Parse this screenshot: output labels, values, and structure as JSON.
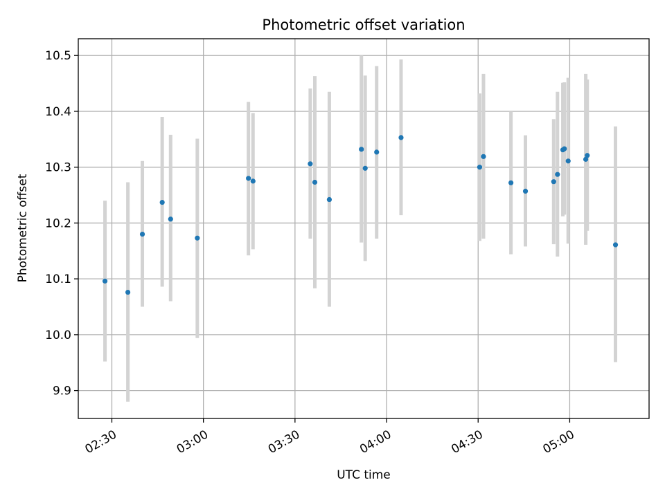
{
  "chart_data": {
    "type": "scatter",
    "title": "Photometric offset variation",
    "xlabel": "UTC time",
    "ylabel": "Photometric offset",
    "x_axis": {
      "kind": "time",
      "range": [
        "02:19",
        "05:26"
      ],
      "ticks": [
        "02:30",
        "03:00",
        "03:30",
        "04:00",
        "04:30",
        "05:00"
      ]
    },
    "y_axis": {
      "range": [
        9.85,
        10.53
      ],
      "ticks": [
        "9.9",
        "10.0",
        "10.1",
        "10.2",
        "10.3",
        "10.4",
        "10.5"
      ]
    },
    "grid": true,
    "point_color": "#1f77b4",
    "errorbar_color": "#d3d3d3",
    "points": [
      {
        "t": "02:27:45",
        "y": 10.096,
        "ylo": 9.952,
        "yhi": 10.24
      },
      {
        "t": "02:35:15",
        "y": 10.076,
        "ylo": 9.88,
        "yhi": 10.273
      },
      {
        "t": "02:40:00",
        "y": 10.18,
        "ylo": 10.05,
        "yhi": 10.311
      },
      {
        "t": "02:46:30",
        "y": 10.237,
        "ylo": 10.086,
        "yhi": 10.39
      },
      {
        "t": "02:49:15",
        "y": 10.207,
        "ylo": 10.06,
        "yhi": 10.358
      },
      {
        "t": "02:58:00",
        "y": 10.173,
        "ylo": 9.994,
        "yhi": 10.351
      },
      {
        "t": "03:14:45",
        "y": 10.28,
        "ylo": 10.142,
        "yhi": 10.417
      },
      {
        "t": "03:16:15",
        "y": 10.275,
        "ylo": 10.153,
        "yhi": 10.397
      },
      {
        "t": "03:35:00",
        "y": 10.306,
        "ylo": 10.172,
        "yhi": 10.441
      },
      {
        "t": "03:36:30",
        "y": 10.273,
        "ylo": 10.083,
        "yhi": 10.463
      },
      {
        "t": "03:41:15",
        "y": 10.242,
        "ylo": 10.05,
        "yhi": 10.435
      },
      {
        "t": "03:51:45",
        "y": 10.332,
        "ylo": 10.165,
        "yhi": 10.5
      },
      {
        "t": "03:53:00",
        "y": 10.298,
        "ylo": 10.132,
        "yhi": 10.464
      },
      {
        "t": "03:56:45",
        "y": 10.327,
        "ylo": 10.172,
        "yhi": 10.481
      },
      {
        "t": "04:04:45",
        "y": 10.353,
        "ylo": 10.214,
        "yhi": 10.493
      },
      {
        "t": "04:30:30",
        "y": 10.3,
        "ylo": 10.168,
        "yhi": 10.432
      },
      {
        "t": "04:31:45",
        "y": 10.319,
        "ylo": 10.172,
        "yhi": 10.467
      },
      {
        "t": "04:40:45",
        "y": 10.272,
        "ylo": 10.144,
        "yhi": 10.4
      },
      {
        "t": "04:45:30",
        "y": 10.257,
        "ylo": 10.158,
        "yhi": 10.357
      },
      {
        "t": "04:54:45",
        "y": 10.274,
        "ylo": 10.162,
        "yhi": 10.386
      },
      {
        "t": "04:56:00",
        "y": 10.287,
        "ylo": 10.14,
        "yhi": 10.435
      },
      {
        "t": "04:57:45",
        "y": 10.331,
        "ylo": 10.212,
        "yhi": 10.451
      },
      {
        "t": "04:58:15",
        "y": 10.333,
        "ylo": 10.215,
        "yhi": 10.452
      },
      {
        "t": "04:59:30",
        "y": 10.311,
        "ylo": 10.163,
        "yhi": 10.46
      },
      {
        "t": "05:05:15",
        "y": 10.314,
        "ylo": 10.161,
        "yhi": 10.467
      },
      {
        "t": "05:05:45",
        "y": 10.321,
        "ylo": 10.186,
        "yhi": 10.457
      },
      {
        "t": "05:15:00",
        "y": 10.161,
        "ylo": 9.951,
        "yhi": 10.373
      }
    ]
  }
}
